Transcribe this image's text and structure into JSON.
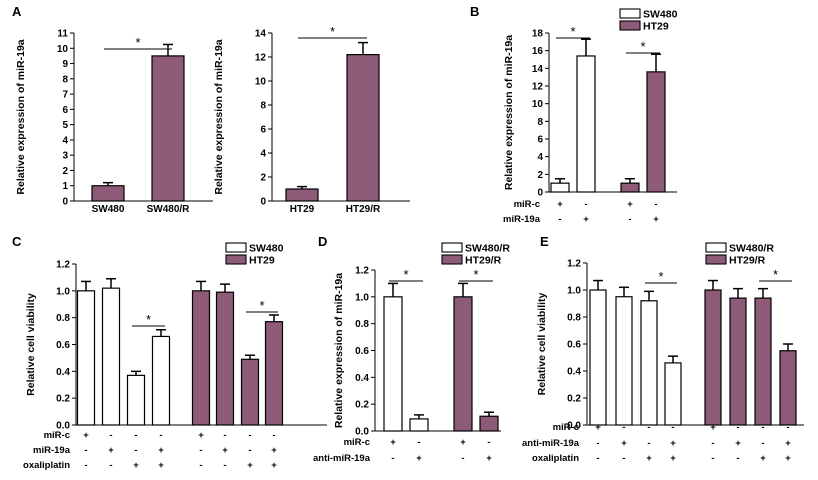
{
  "colors": {
    "open": "#ffffff",
    "filled": "#8d5a77",
    "line": "#000000"
  },
  "chart_data": [
    {
      "panel": "A",
      "type": "bar",
      "title": "",
      "ylabel": "Relative expression of miR-19a",
      "ylim": [
        0,
        11
      ],
      "yticks": [
        0,
        1,
        2,
        3,
        4,
        5,
        6,
        7,
        8,
        9,
        10,
        11
      ],
      "categories": [
        "SW480",
        "SW480/R"
      ],
      "values": [
        1.0,
        9.5
      ],
      "errors": [
        0.2,
        0.75
      ],
      "fills": [
        "filled",
        "filled"
      ],
      "significance": [
        {
          "pair": [
            0,
            1
          ],
          "label": "*"
        }
      ]
    },
    {
      "panel": "",
      "type": "bar",
      "title": "",
      "ylabel": "Relative expression of miR-19a",
      "ylim": [
        0,
        14
      ],
      "yticks": [
        0,
        2,
        4,
        6,
        8,
        10,
        12,
        14
      ],
      "categories": [
        "HT29",
        "HT29/R"
      ],
      "values": [
        1.0,
        12.2
      ],
      "errors": [
        0.2,
        1.0
      ],
      "fills": [
        "filled",
        "filled"
      ],
      "significance": [
        {
          "pair": [
            0,
            1
          ],
          "label": "*"
        }
      ]
    },
    {
      "panel": "B",
      "type": "bar",
      "title": "",
      "ylabel": "Relative expression of miR-19a",
      "ylim": [
        0,
        18
      ],
      "yticks": [
        0,
        2,
        4,
        6,
        8,
        10,
        12,
        14,
        16,
        18
      ],
      "legend": [
        {
          "name": "SW480",
          "fill": "open"
        },
        {
          "name": "HT29",
          "fill": "filled"
        }
      ],
      "values": [
        1.0,
        15.4,
        1.0,
        13.6
      ],
      "errors": [
        0.5,
        1.9,
        0.5,
        2.0
      ],
      "fills": [
        "open",
        "open",
        "filled",
        "filled"
      ],
      "rows": [
        {
          "label": "miR-c",
          "marks": [
            "+",
            "-",
            "+",
            "-"
          ]
        },
        {
          "label": "miR-19a",
          "marks": [
            "-",
            "+",
            "-",
            "+"
          ]
        }
      ],
      "significance": [
        {
          "pair": [
            0,
            1
          ],
          "label": "*"
        },
        {
          "pair": [
            2,
            3
          ],
          "label": "*"
        }
      ]
    },
    {
      "panel": "C",
      "type": "bar",
      "title": "",
      "ylabel": "Relative cell viability",
      "ylim": [
        0,
        1.2
      ],
      "yticks": [
        "0.0",
        "0.2",
        "0.4",
        "0.6",
        "0.8",
        "1.0",
        "1.2"
      ],
      "legend": [
        {
          "name": "SW480",
          "fill": "open"
        },
        {
          "name": "HT29",
          "fill": "filled"
        }
      ],
      "values": [
        1.0,
        1.02,
        0.37,
        0.66,
        1.0,
        0.99,
        0.49,
        0.77
      ],
      "errors": [
        0.07,
        0.07,
        0.03,
        0.05,
        0.07,
        0.06,
        0.03,
        0.05
      ],
      "fills": [
        "open",
        "open",
        "open",
        "open",
        "filled",
        "filled",
        "filled",
        "filled"
      ],
      "rows": [
        {
          "label": "miR-c",
          "marks": [
            "+",
            "-",
            "-",
            "-",
            "+",
            "-",
            "-",
            "-"
          ]
        },
        {
          "label": "miR-19a",
          "marks": [
            "-",
            "+",
            "-",
            "+",
            "-",
            "+",
            "-",
            "+"
          ]
        },
        {
          "label": "oxaliplatin",
          "marks": [
            "-",
            "-",
            "+",
            "+",
            "-",
            "-",
            "+",
            "+"
          ]
        }
      ],
      "significance": [
        {
          "pair": [
            2,
            3
          ],
          "label": "*"
        },
        {
          "pair": [
            6,
            7
          ],
          "label": "*"
        }
      ]
    },
    {
      "panel": "D",
      "type": "bar",
      "title": "",
      "ylabel": "Relative expression of miR-19a",
      "ylim": [
        0,
        1.2
      ],
      "yticks": [
        "0.0",
        "0.2",
        "0.4",
        "0.6",
        "0.8",
        "1.0",
        "1.2"
      ],
      "legend": [
        {
          "name": "SW480/R",
          "fill": "open"
        },
        {
          "name": "HT29/R",
          "fill": "filled"
        }
      ],
      "values": [
        1.0,
        0.09,
        1.0,
        0.11
      ],
      "errors": [
        0.1,
        0.03,
        0.1,
        0.03
      ],
      "fills": [
        "open",
        "open",
        "filled",
        "filled"
      ],
      "rows": [
        {
          "label": "miR-c",
          "marks": [
            "+",
            "-",
            "+",
            "-"
          ]
        },
        {
          "label": "anti-miR-19a",
          "marks": [
            "-",
            "+",
            "-",
            "+"
          ]
        }
      ],
      "significance": [
        {
          "pair": [
            0,
            1
          ],
          "label": "*"
        },
        {
          "pair": [
            2,
            3
          ],
          "label": "*"
        }
      ]
    },
    {
      "panel": "E",
      "type": "bar",
      "title": "",
      "ylabel": "Relative cell viability",
      "ylim": [
        0,
        1.2
      ],
      "yticks": [
        "0.0",
        "0.2",
        "0.4",
        "0.6",
        "0.8",
        "1.0",
        "1.2"
      ],
      "legend": [
        {
          "name": "SW480/R",
          "fill": "open"
        },
        {
          "name": "HT29/R",
          "fill": "filled"
        }
      ],
      "values": [
        1.0,
        0.95,
        0.92,
        0.46,
        1.0,
        0.94,
        0.94,
        0.55
      ],
      "errors": [
        0.07,
        0.07,
        0.07,
        0.05,
        0.07,
        0.07,
        0.07,
        0.05
      ],
      "fills": [
        "open",
        "open",
        "open",
        "open",
        "filled",
        "filled",
        "filled",
        "filled"
      ],
      "rows": [
        {
          "label": "miR-c",
          "marks": [
            "+",
            "-",
            "-",
            "-",
            "+",
            "-",
            "-",
            "-"
          ]
        },
        {
          "label": "anti-miR-19a",
          "marks": [
            "-",
            "+",
            "-",
            "+",
            "-",
            "+",
            "-",
            "+"
          ]
        },
        {
          "label": "oxaliplatin",
          "marks": [
            "-",
            "-",
            "+",
            "+",
            "-",
            "-",
            "+",
            "+"
          ]
        }
      ],
      "significance": [
        {
          "pair": [
            2,
            3
          ],
          "label": "*"
        },
        {
          "pair": [
            6,
            7
          ],
          "label": "*"
        }
      ]
    }
  ]
}
